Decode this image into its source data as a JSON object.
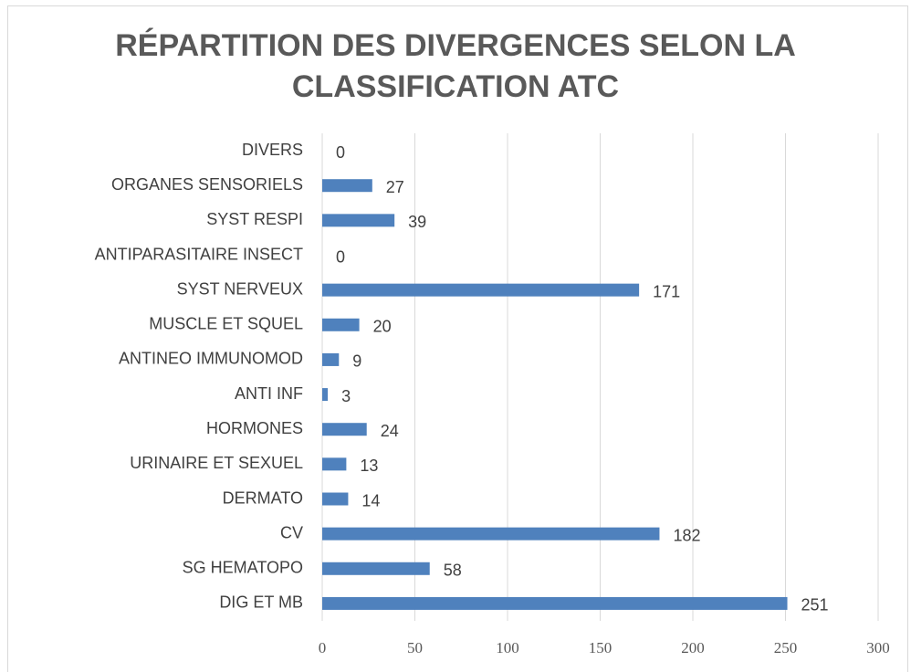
{
  "chart_data": {
    "type": "barh",
    "title": "RÉPARTITION DES DIVERGENCES SELON LA CLASSIFICATION ATC",
    "categories": [
      "DIG ET MB",
      "SG HEMATOPO",
      "CV",
      "DERMATO",
      "URINAIRE ET SEXUEL",
      "HORMONES",
      "ANTI INF",
      "ANTINEO IMMUNOMOD",
      "MUSCLE ET SQUEL",
      "SYST NERVEUX",
      "ANTIPARASITAIRE INSECT",
      "SYST RESPI",
      "ORGANES SENSORIELS",
      "DIVERS"
    ],
    "values": [
      251,
      58,
      182,
      14,
      13,
      24,
      3,
      9,
      20,
      171,
      0,
      39,
      27,
      0
    ],
    "color": "#4f81bd",
    "xlim": [
      0,
      300
    ],
    "xticks": [
      0,
      50,
      100,
      150,
      200,
      250,
      300
    ],
    "grid": true
  }
}
